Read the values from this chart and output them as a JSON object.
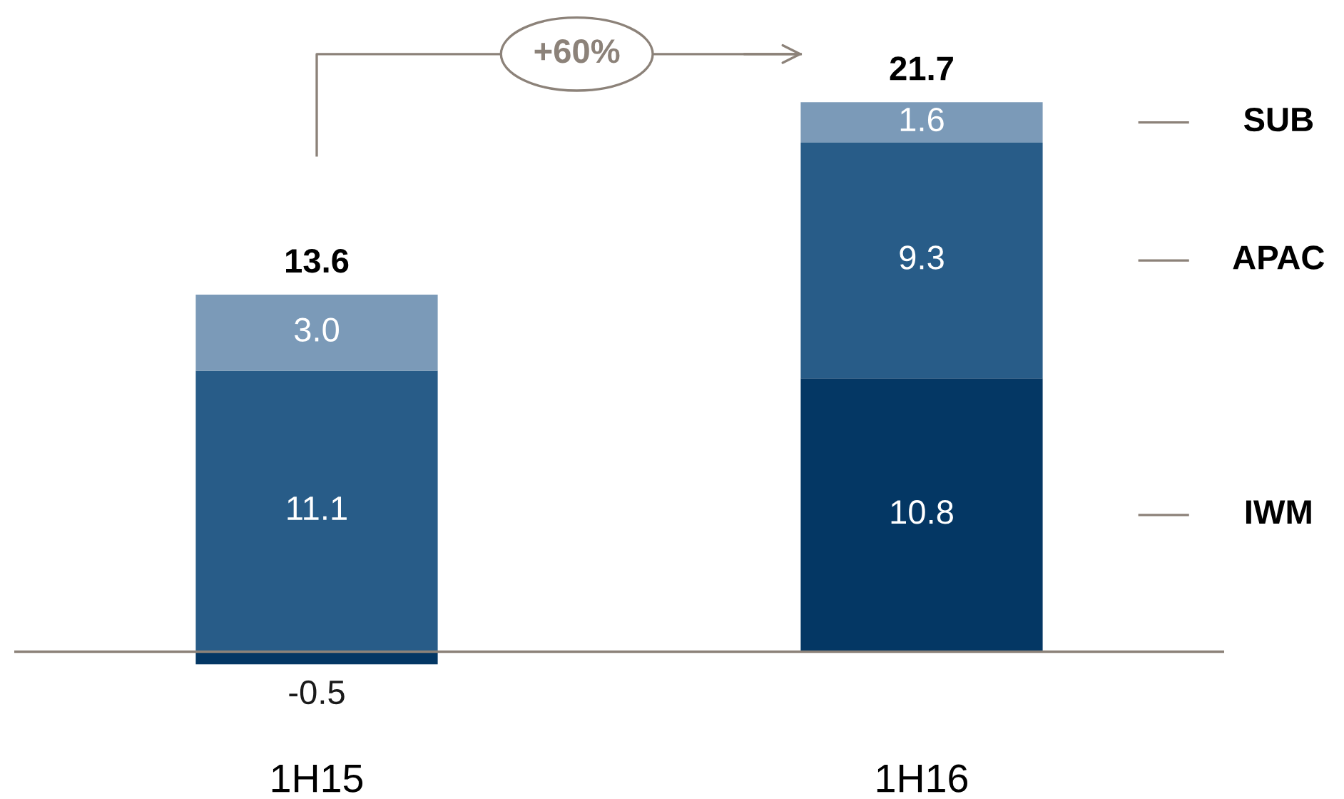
{
  "chart_data": {
    "type": "bar",
    "stacked": true,
    "categories": [
      "1H15",
      "1H16"
    ],
    "series": [
      {
        "name": "IWM",
        "color": "#043764",
        "values": [
          -0.5,
          10.8
        ],
        "value_labels": [
          "-0.5",
          "10.8"
        ]
      },
      {
        "name": "APAC",
        "color": "#285c88",
        "values": [
          11.1,
          9.3
        ],
        "value_labels": [
          "11.1",
          "9.3"
        ]
      },
      {
        "name": "SUB",
        "color": "#7b9ab8",
        "values": [
          3.0,
          1.6
        ],
        "value_labels": [
          "3.0",
          "1.6"
        ]
      }
    ],
    "totals": [
      "13.6",
      "21.7"
    ],
    "annotations": [
      "+60%"
    ]
  }
}
